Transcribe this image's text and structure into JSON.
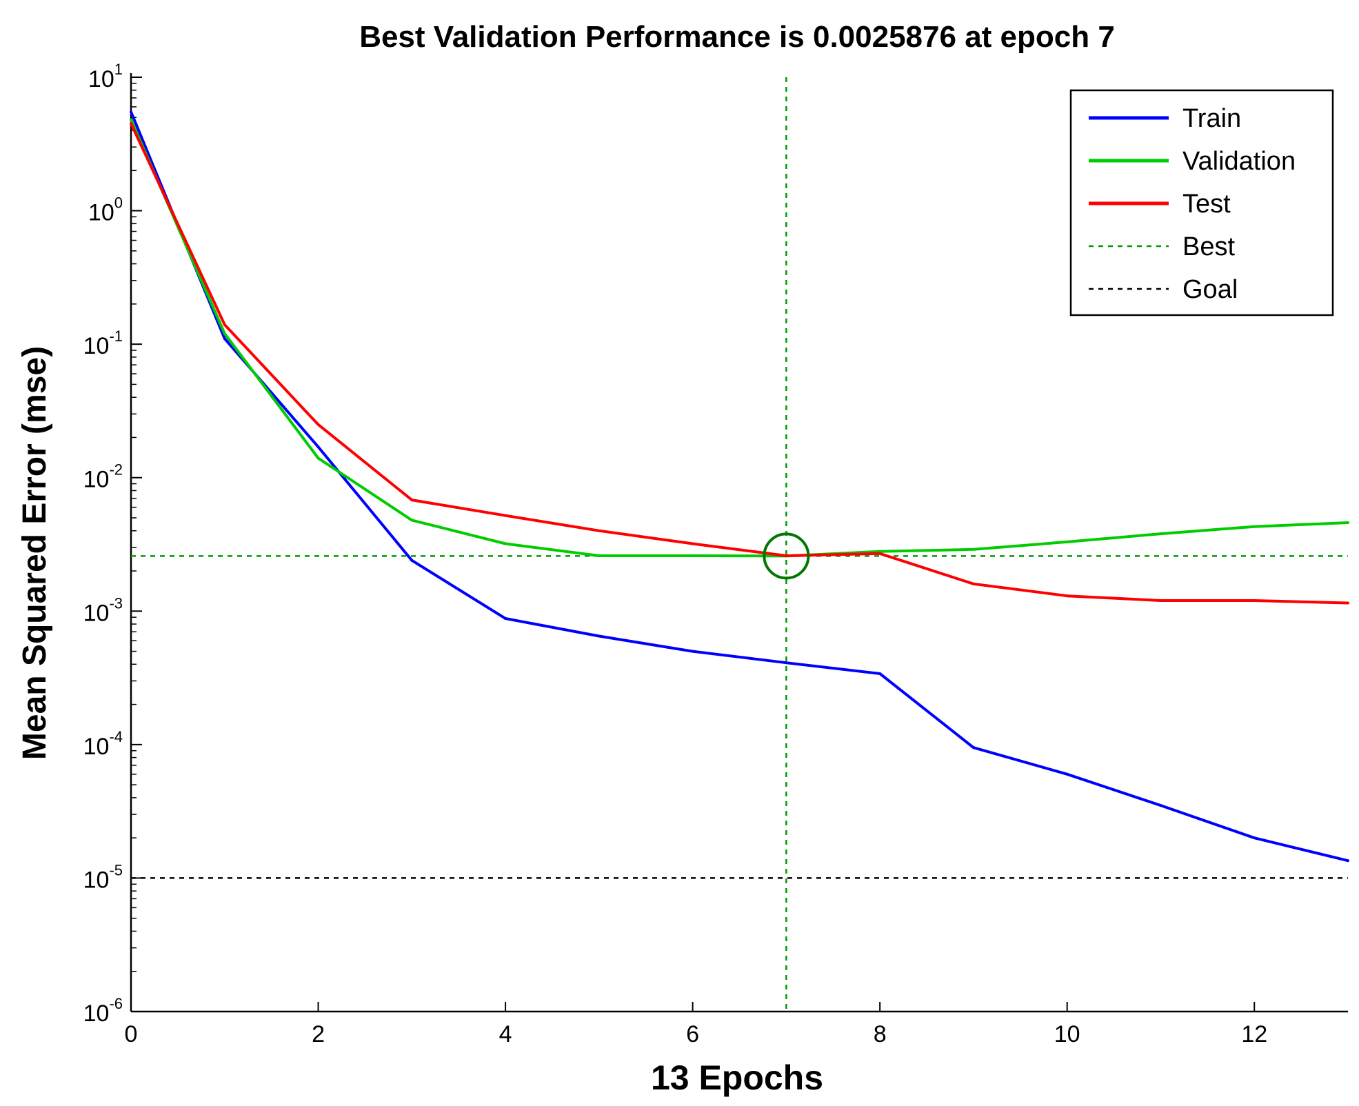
{
  "chart_data": {
    "type": "line",
    "title": "Best Validation Performance is 0.0025876 at epoch 7",
    "xlabel": "13 Epochs",
    "ylabel": "Mean Squared Error  (mse)",
    "xlim": [
      0,
      13
    ],
    "ylim": [
      1e-06,
      10
    ],
    "yscale": "log",
    "xticks": [
      0,
      2,
      4,
      6,
      8,
      10,
      12
    ],
    "xtick_labels": [
      "0",
      "2",
      "4",
      "6",
      "8",
      "10",
      "12"
    ],
    "yticks": [
      {
        "value": 10,
        "base": "10",
        "exp": "1"
      },
      {
        "value": 1,
        "base": "10",
        "exp": "0"
      },
      {
        "value": 0.1,
        "base": "10",
        "exp": "-1"
      },
      {
        "value": 0.01,
        "base": "10",
        "exp": "-2"
      },
      {
        "value": 0.001,
        "base": "10",
        "exp": "-3"
      },
      {
        "value": 0.0001,
        "base": "10",
        "exp": "-4"
      },
      {
        "value": 1e-05,
        "base": "10",
        "exp": "-5"
      },
      {
        "value": 1e-06,
        "base": "10",
        "exp": "-6"
      }
    ],
    "x": [
      0,
      1,
      2,
      3,
      4,
      5,
      6,
      7,
      8,
      9,
      10,
      11,
      12,
      13
    ],
    "series": [
      {
        "name": "Train",
        "color": "#0000ff",
        "style": "solid",
        "values": [
          5.5,
          0.11,
          0.017,
          0.0024,
          0.00088,
          0.00065,
          0.0005,
          0.00041,
          0.00034,
          9.5e-05,
          6e-05,
          3.5e-05,
          2e-05,
          1.35e-05
        ]
      },
      {
        "name": "Validation",
        "color": "#00cc00",
        "style": "solid",
        "values": [
          4.8,
          0.12,
          0.014,
          0.0048,
          0.0032,
          0.0026,
          0.0026,
          0.0025876,
          0.0028,
          0.0029,
          0.0033,
          0.0038,
          0.0043,
          0.0046
        ]
      },
      {
        "name": "Test",
        "color": "#ff0000",
        "style": "solid",
        "values": [
          4.5,
          0.14,
          0.025,
          0.0068,
          0.0052,
          0.004,
          0.0032,
          0.0026,
          0.0027,
          0.0016,
          0.0013,
          0.0012,
          0.0012,
          0.00115
        ]
      }
    ],
    "best": {
      "name": "Best",
      "color": "#009900",
      "style": "dotted",
      "epoch": 7,
      "value": 0.0025876
    },
    "goal": {
      "name": "Goal",
      "color": "#000000",
      "style": "dotted",
      "value": 1e-05
    },
    "legend": {
      "placement": "top-right",
      "entries": [
        {
          "label": "Train",
          "color": "#0000ff",
          "style": "solid"
        },
        {
          "label": "Validation",
          "color": "#00cc00",
          "style": "solid"
        },
        {
          "label": "Test",
          "color": "#ff0000",
          "style": "solid"
        },
        {
          "label": "Best",
          "color": "#009900",
          "style": "dotted"
        },
        {
          "label": "Goal",
          "color": "#000000",
          "style": "dotted"
        }
      ]
    }
  }
}
